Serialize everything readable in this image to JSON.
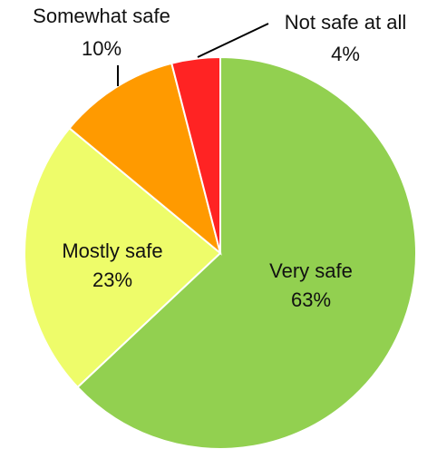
{
  "chart_data": {
    "type": "pie",
    "start": "12 o'clock",
    "direction": "clockwise",
    "slices": [
      {
        "label": "Very safe",
        "value": 63,
        "display": "63%",
        "color": "#92d050"
      },
      {
        "label": "Mostly safe",
        "value": 23,
        "display": "23%",
        "color": "#eefc6a"
      },
      {
        "label": "Somewhat safe",
        "value": 10,
        "display": "10%",
        "color": "#ff9a00"
      },
      {
        "label": "Not safe at all",
        "value": 4,
        "display": "4%",
        "color": "#ff2323"
      }
    ]
  }
}
